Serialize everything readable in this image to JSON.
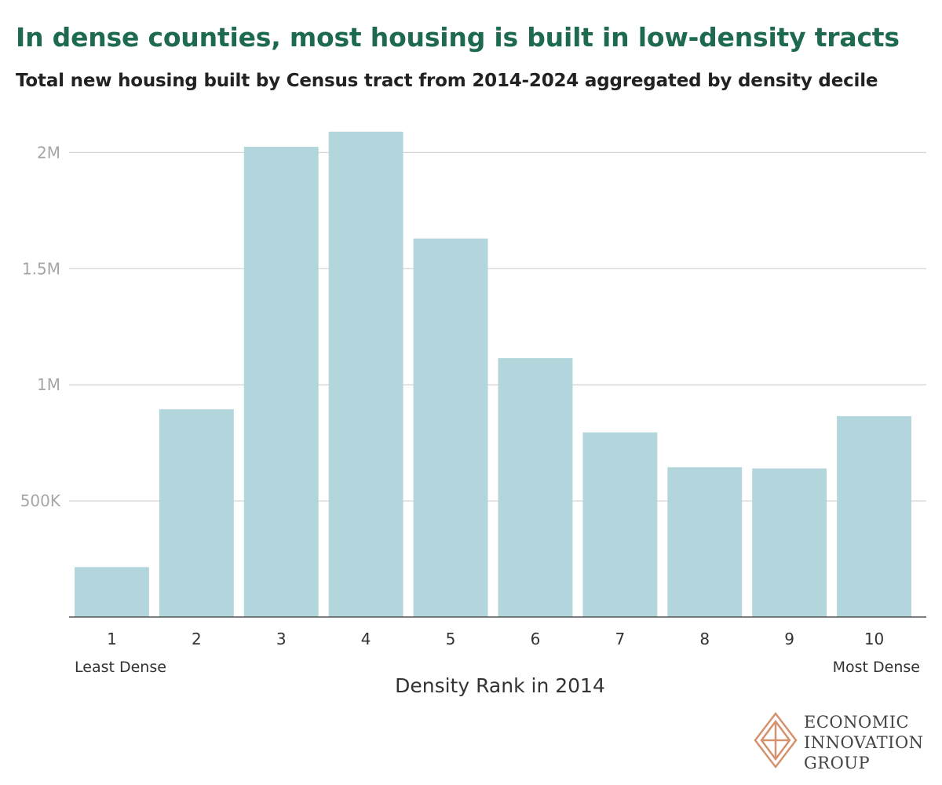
{
  "title": "In dense counties, most housing is built in low-density tracts",
  "subtitle": "Total new housing built by Census tract from 2014-2024 aggregated by density decile",
  "chart_data": {
    "type": "bar",
    "title": "In dense counties, most housing is built in low-density tracts",
    "subtitle": "Total new housing built by Census tract from 2014-2024 aggregated by density decile",
    "categories": [
      "1",
      "2",
      "3",
      "4",
      "5",
      "6",
      "7",
      "8",
      "9",
      "10"
    ],
    "values": [
      215000,
      895000,
      2025000,
      2090000,
      1630000,
      1115000,
      795000,
      645000,
      640000,
      865000
    ],
    "xlabel": "Density Rank in 2014",
    "ylabel": "",
    "ylim": [
      0,
      2150000
    ],
    "yticks": [
      500000,
      1000000,
      1500000,
      2000000
    ],
    "ytick_labels": [
      "500K",
      "1M",
      "1.5M",
      "2M"
    ],
    "x_annotations": {
      "left": "Least Dense",
      "right": "Most Dense"
    },
    "grid": true,
    "bar_color": "#b3d6dc"
  },
  "logo": {
    "line1": "ECONOMIC",
    "line2": "INNOVATION",
    "line3": "GROUP",
    "color": "#d4926e"
  }
}
